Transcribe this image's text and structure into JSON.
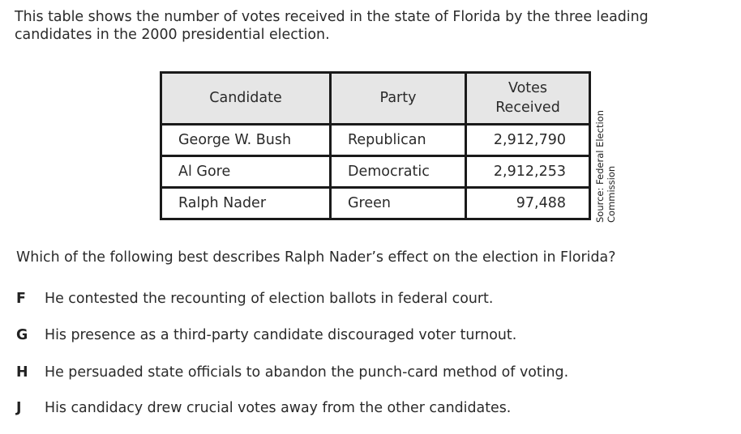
{
  "intro": {
    "line1": "This table shows the number of votes received in the state of Florida by the three leading",
    "line2": "candidates in the 2000 presidential election."
  },
  "table": {
    "headers": [
      "Candidate",
      "Party",
      "Votes",
      "Received"
    ],
    "rows": [
      {
        "candidate": "George W. Bush",
        "party": "Republican",
        "votes": "2,912,790"
      },
      {
        "candidate": "Al Gore",
        "party": "Democratic",
        "votes": "2,912,253"
      },
      {
        "candidate": "Ralph Nader",
        "party": "Green",
        "votes": "97,488"
      }
    ],
    "source_line1": "Source: Federal Election",
    "source_line2": "Commission"
  },
  "question": "Which of the following best describes Ralph Nader’s effect on the election in Florida?",
  "options": [
    {
      "letter": "F",
      "text": "He contested the recounting of election ballots in federal court."
    },
    {
      "letter": "G",
      "text": "His presence as a third-party candidate discouraged voter turnout."
    },
    {
      "letter": "H",
      "text": "He persuaded state officials to abandon the punch-card method of voting."
    },
    {
      "letter": "J",
      "text": "His candidacy drew crucial votes away from the other candidates."
    }
  ]
}
